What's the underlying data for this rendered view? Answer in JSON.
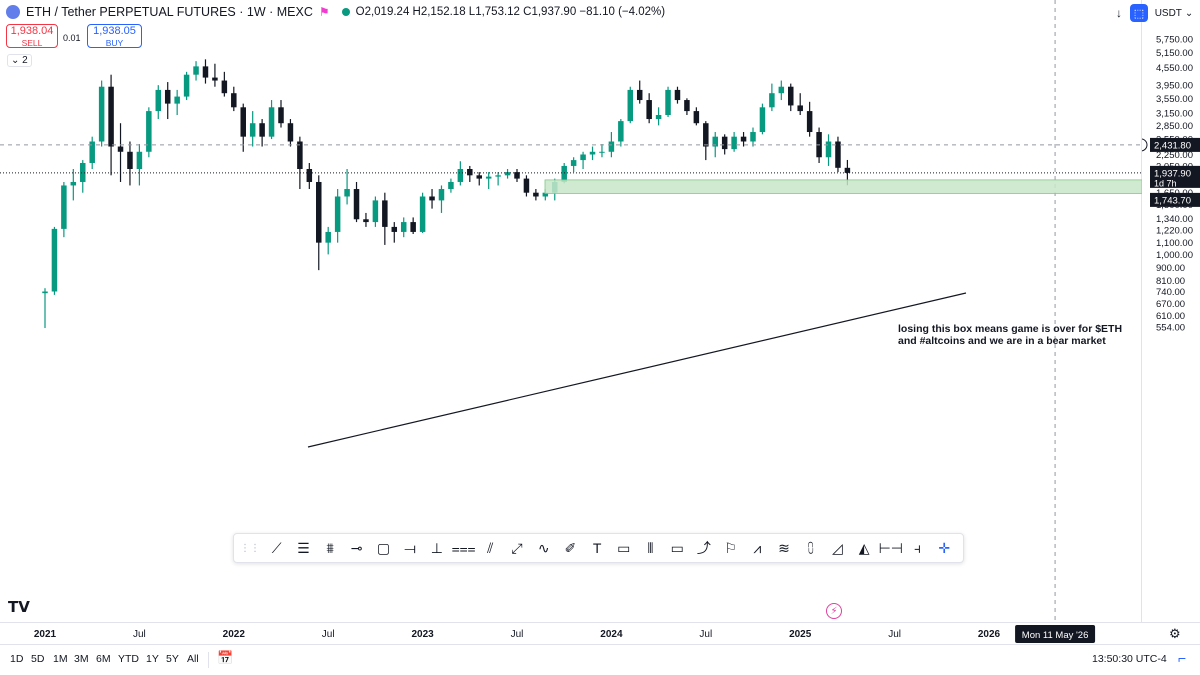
{
  "header": {
    "title": "ETH / Tether PERPETUAL FUTURES · 1W · MEXC",
    "ohlc": "O2,019.24 H2,152.18 L1,753.12 C1,937.90 −81.10 (−4.02%)"
  },
  "trade": {
    "sell_price": "1,938.04",
    "sell_label": "SELL",
    "spread": "0.01",
    "buy_price": "1,938.05",
    "buy_label": "BUY",
    "indicator_count": "2"
  },
  "axis": {
    "currency": "USDT",
    "price_ticks": [
      "5,750.00",
      "5,150.00",
      "4,550.00",
      "3,950.00",
      "3,550.00",
      "3,150.00",
      "2,850.00",
      "2,550.00",
      "2,250.00",
      "2,050.00",
      "1,650.00",
      "1,500.00",
      "1,340.00",
      "1,220.00",
      "1,100.00",
      "1,000.00",
      "900.00",
      "810.00",
      "740.00",
      "670.00",
      "610.00",
      "554.00"
    ],
    "time_ticks": [
      "2021",
      "Jul",
      "2022",
      "Jul",
      "2023",
      "Jul",
      "2024",
      "Jul",
      "2025",
      "Jul",
      "2026"
    ],
    "crosshair_date": "Mon 11 May '26",
    "crosshair_price": "2,431.80",
    "last_price": "1,937.90",
    "countdown": "1d 7h",
    "box_price": "1,743.70"
  },
  "annotation": {
    "line1": "losing this box means game is over for $ETH",
    "line2": "and #altcoins and we are in a bear market"
  },
  "timeframes": [
    "1D",
    "5D",
    "1M",
    "3M",
    "6M",
    "YTD",
    "1Y",
    "5Y",
    "All"
  ],
  "clock": "13:50:30 UTC-4",
  "colors": {
    "up": "#089981",
    "down": "#131722",
    "box": "#c8e6c9",
    "accent": "#2962ff"
  },
  "toolbar_icons": [
    "drag-handle-icon",
    "trend-line-icon",
    "horizontal-lines-icon",
    "parallel-channel-icon",
    "horizontal-ray-icon",
    "rectangle-icon",
    "horizontal-line-icon",
    "vertical-line-icon",
    "regression-icon",
    "path-icon",
    "arrow-marker-icon",
    "curve-icon",
    "brush-icon",
    "text-icon",
    "callout-icon",
    "candles-icon",
    "comment-icon",
    "arrow-icon",
    "flag-icon",
    "zigzag-icon",
    "fib-icon",
    "long-position-icon",
    "projection-icon",
    "triangle-icon",
    "date-range-icon",
    "price-range-icon",
    "crosshair-icon"
  ],
  "chart_data": {
    "type": "candlestick",
    "price_range": [
      550,
      5750
    ],
    "price_scale": "log",
    "candles": [
      {
        "t": 2021.0,
        "o": 730,
        "h": 760,
        "l": 550,
        "c": 740
      },
      {
        "t": 2021.05,
        "o": 740,
        "h": 1250,
        "l": 720,
        "c": 1230
      },
      {
        "t": 2021.1,
        "o": 1230,
        "h": 1800,
        "l": 1150,
        "c": 1750
      },
      {
        "t": 2021.15,
        "o": 1750,
        "h": 2000,
        "l": 1550,
        "c": 1800
      },
      {
        "t": 2021.2,
        "o": 1800,
        "h": 2150,
        "l": 1650,
        "c": 2100
      },
      {
        "t": 2021.25,
        "o": 2100,
        "h": 2600,
        "l": 2000,
        "c": 2500
      },
      {
        "t": 2021.3,
        "o": 2500,
        "h": 4100,
        "l": 2400,
        "c": 3900
      },
      {
        "t": 2021.35,
        "o": 3900,
        "h": 4300,
        "l": 1900,
        "c": 2400
      },
      {
        "t": 2021.4,
        "o": 2400,
        "h": 2900,
        "l": 1800,
        "c": 2300
      },
      {
        "t": 2021.45,
        "o": 2300,
        "h": 2500,
        "l": 1750,
        "c": 2000
      },
      {
        "t": 2021.5,
        "o": 2000,
        "h": 2450,
        "l": 1750,
        "c": 2300
      },
      {
        "t": 2021.55,
        "o": 2300,
        "h": 3300,
        "l": 2200,
        "c": 3200
      },
      {
        "t": 2021.6,
        "o": 3200,
        "h": 3950,
        "l": 3000,
        "c": 3800
      },
      {
        "t": 2021.65,
        "o": 3800,
        "h": 4050,
        "l": 3000,
        "c": 3400
      },
      {
        "t": 2021.7,
        "o": 3400,
        "h": 3800,
        "l": 3100,
        "c": 3600
      },
      {
        "t": 2021.75,
        "o": 3600,
        "h": 4400,
        "l": 3500,
        "c": 4300
      },
      {
        "t": 2021.8,
        "o": 4300,
        "h": 4800,
        "l": 4100,
        "c": 4600
      },
      {
        "t": 2021.85,
        "o": 4600,
        "h": 4870,
        "l": 4000,
        "c": 4200
      },
      {
        "t": 2021.9,
        "o": 4200,
        "h": 4700,
        "l": 3900,
        "c": 4100
      },
      {
        "t": 2021.95,
        "o": 4100,
        "h": 4400,
        "l": 3600,
        "c": 3700
      },
      {
        "t": 2022.0,
        "o": 3700,
        "h": 3900,
        "l": 3200,
        "c": 3300
      },
      {
        "t": 2022.05,
        "o": 3300,
        "h": 3400,
        "l": 2300,
        "c": 2600
      },
      {
        "t": 2022.1,
        "o": 2600,
        "h": 3200,
        "l": 2400,
        "c": 2900
      },
      {
        "t": 2022.15,
        "o": 2900,
        "h": 3000,
        "l": 2400,
        "c": 2600
      },
      {
        "t": 2022.2,
        "o": 2600,
        "h": 3500,
        "l": 2550,
        "c": 3300
      },
      {
        "t": 2022.25,
        "o": 3300,
        "h": 3500,
        "l": 2800,
        "c": 2900
      },
      {
        "t": 2022.3,
        "o": 2900,
        "h": 3000,
        "l": 2400,
        "c": 2500
      },
      {
        "t": 2022.35,
        "o": 2500,
        "h": 2600,
        "l": 1700,
        "c": 2000
      },
      {
        "t": 2022.4,
        "o": 2000,
        "h": 2100,
        "l": 1700,
        "c": 1800
      },
      {
        "t": 2022.45,
        "o": 1800,
        "h": 1900,
        "l": 880,
        "c": 1100
      },
      {
        "t": 2022.5,
        "o": 1100,
        "h": 1250,
        "l": 1000,
        "c": 1200
      },
      {
        "t": 2022.55,
        "o": 1200,
        "h": 1700,
        "l": 1100,
        "c": 1600
      },
      {
        "t": 2022.6,
        "o": 1600,
        "h": 2000,
        "l": 1500,
        "c": 1700
      },
      {
        "t": 2022.65,
        "o": 1700,
        "h": 1800,
        "l": 1300,
        "c": 1330
      },
      {
        "t": 2022.7,
        "o": 1330,
        "h": 1400,
        "l": 1250,
        "c": 1300
      },
      {
        "t": 2022.75,
        "o": 1300,
        "h": 1600,
        "l": 1250,
        "c": 1550
      },
      {
        "t": 2022.8,
        "o": 1550,
        "h": 1650,
        "l": 1080,
        "c": 1250
      },
      {
        "t": 2022.85,
        "o": 1250,
        "h": 1300,
        "l": 1100,
        "c": 1200
      },
      {
        "t": 2022.9,
        "o": 1200,
        "h": 1350,
        "l": 1150,
        "c": 1300
      },
      {
        "t": 2022.95,
        "o": 1300,
        "h": 1350,
        "l": 1180,
        "c": 1200
      },
      {
        "t": 2023.0,
        "o": 1200,
        "h": 1650,
        "l": 1190,
        "c": 1600
      },
      {
        "t": 2023.05,
        "o": 1600,
        "h": 1700,
        "l": 1450,
        "c": 1550
      },
      {
        "t": 2023.1,
        "o": 1550,
        "h": 1750,
        "l": 1400,
        "c": 1700
      },
      {
        "t": 2023.15,
        "o": 1700,
        "h": 1850,
        "l": 1650,
        "c": 1800
      },
      {
        "t": 2023.2,
        "o": 1800,
        "h": 2130,
        "l": 1750,
        "c": 2000
      },
      {
        "t": 2023.25,
        "o": 2000,
        "h": 2050,
        "l": 1800,
        "c": 1900
      },
      {
        "t": 2023.3,
        "o": 1900,
        "h": 1950,
        "l": 1750,
        "c": 1850
      },
      {
        "t": 2023.35,
        "o": 1850,
        "h": 1950,
        "l": 1700,
        "c": 1880
      },
      {
        "t": 2023.4,
        "o": 1880,
        "h": 1950,
        "l": 1750,
        "c": 1900
      },
      {
        "t": 2023.45,
        "o": 1900,
        "h": 2000,
        "l": 1850,
        "c": 1950
      },
      {
        "t": 2023.5,
        "o": 1950,
        "h": 2000,
        "l": 1800,
        "c": 1850
      },
      {
        "t": 2023.55,
        "o": 1850,
        "h": 1900,
        "l": 1600,
        "c": 1650
      },
      {
        "t": 2023.6,
        "o": 1650,
        "h": 1700,
        "l": 1550,
        "c": 1600
      },
      {
        "t": 2023.65,
        "o": 1600,
        "h": 1700,
        "l": 1550,
        "c": 1650
      },
      {
        "t": 2023.7,
        "o": 1650,
        "h": 1850,
        "l": 1550,
        "c": 1800
      },
      {
        "t": 2023.75,
        "o": 1800,
        "h": 2100,
        "l": 1780,
        "c": 2050
      },
      {
        "t": 2023.8,
        "o": 2050,
        "h": 2200,
        "l": 1950,
        "c": 2150
      },
      {
        "t": 2023.85,
        "o": 2150,
        "h": 2300,
        "l": 2000,
        "c": 2250
      },
      {
        "t": 2023.9,
        "o": 2250,
        "h": 2400,
        "l": 2150,
        "c": 2300
      },
      {
        "t": 2023.95,
        "o": 2300,
        "h": 2450,
        "l": 2200,
        "c": 2300
      },
      {
        "t": 2024.0,
        "o": 2300,
        "h": 2700,
        "l": 2200,
        "c": 2500
      },
      {
        "t": 2024.05,
        "o": 2500,
        "h": 3000,
        "l": 2400,
        "c": 2950
      },
      {
        "t": 2024.1,
        "o": 2950,
        "h": 3900,
        "l": 2900,
        "c": 3800
      },
      {
        "t": 2024.15,
        "o": 3800,
        "h": 4100,
        "l": 3400,
        "c": 3500
      },
      {
        "t": 2024.2,
        "o": 3500,
        "h": 3700,
        "l": 2900,
        "c": 3000
      },
      {
        "t": 2024.25,
        "o": 3000,
        "h": 3300,
        "l": 2850,
        "c": 3100
      },
      {
        "t": 2024.3,
        "o": 3100,
        "h": 3900,
        "l": 3050,
        "c": 3800
      },
      {
        "t": 2024.35,
        "o": 3800,
        "h": 3900,
        "l": 3400,
        "c": 3500
      },
      {
        "t": 2024.4,
        "o": 3500,
        "h": 3550,
        "l": 3100,
        "c": 3200
      },
      {
        "t": 2024.45,
        "o": 3200,
        "h": 3300,
        "l": 2850,
        "c": 2900
      },
      {
        "t": 2024.5,
        "o": 2900,
        "h": 2950,
        "l": 2150,
        "c": 2400
      },
      {
        "t": 2024.55,
        "o": 2400,
        "h": 2700,
        "l": 2200,
        "c": 2600
      },
      {
        "t": 2024.6,
        "o": 2600,
        "h": 2650,
        "l": 2250,
        "c": 2350
      },
      {
        "t": 2024.65,
        "o": 2350,
        "h": 2700,
        "l": 2300,
        "c": 2600
      },
      {
        "t": 2024.7,
        "o": 2600,
        "h": 2700,
        "l": 2400,
        "c": 2500
      },
      {
        "t": 2024.75,
        "o": 2500,
        "h": 2800,
        "l": 2400,
        "c": 2700
      },
      {
        "t": 2024.8,
        "o": 2700,
        "h": 3400,
        "l": 2650,
        "c": 3300
      },
      {
        "t": 2024.85,
        "o": 3300,
        "h": 4000,
        "l": 3200,
        "c": 3700
      },
      {
        "t": 2024.9,
        "o": 3700,
        "h": 4100,
        "l": 3500,
        "c": 3900
      },
      {
        "t": 2024.95,
        "o": 3900,
        "h": 4000,
        "l": 3200,
        "c": 3350
      },
      {
        "t": 2025.0,
        "o": 3350,
        "h": 3700,
        "l": 3100,
        "c": 3200
      },
      {
        "t": 2025.05,
        "o": 3200,
        "h": 3450,
        "l": 2600,
        "c": 2700
      },
      {
        "t": 2025.1,
        "o": 2700,
        "h": 2800,
        "l": 2100,
        "c": 2200
      },
      {
        "t": 2025.15,
        "o": 2200,
        "h": 2650,
        "l": 2050,
        "c": 2500
      },
      {
        "t": 2025.2,
        "o": 2500,
        "h": 2600,
        "l": 1950,
        "c": 2019.24
      },
      {
        "t": 2025.25,
        "o": 2019.24,
        "h": 2152.18,
        "l": 1753.12,
        "c": 1937.9
      }
    ]
  }
}
